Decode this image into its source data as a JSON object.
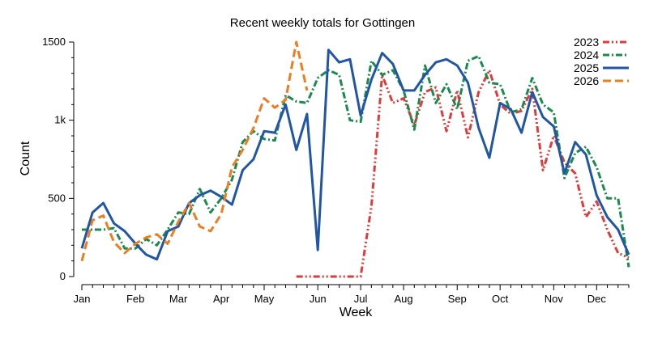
{
  "chart_data": {
    "type": "line",
    "title": "Recent weekly totals for Gottingen",
    "xlabel": "Week",
    "ylabel": "Count",
    "xlim": [
      1,
      52
    ],
    "ylim": [
      0,
      1500
    ],
    "y_ticks": [
      {
        "value": 0,
        "label": "0"
      },
      {
        "value": 500,
        "label": "500"
      },
      {
        "value": 1000,
        "label": "1k"
      },
      {
        "value": 1500,
        "label": "1500"
      }
    ],
    "x_ticks": [
      {
        "value": 1,
        "label": "Jan"
      },
      {
        "value": 6,
        "label": "Feb"
      },
      {
        "value": 10,
        "label": "Mar"
      },
      {
        "value": 14,
        "label": "Apr"
      },
      {
        "value": 18,
        "label": "May"
      },
      {
        "value": 23,
        "label": "Jun"
      },
      {
        "value": 27,
        "label": "Jul"
      },
      {
        "value": 31,
        "label": "Aug"
      },
      {
        "value": 36,
        "label": "Sep"
      },
      {
        "value": 40,
        "label": "Oct"
      },
      {
        "value": 45,
        "label": "Nov"
      },
      {
        "value": 49,
        "label": "Dec"
      }
    ],
    "legend_position": "top-right",
    "grid": false,
    "series": [
      {
        "name": "2023",
        "color": "#e03a3a",
        "dash": "dash-dot-dot",
        "x": [
          21,
          22,
          23,
          24,
          25,
          26,
          27,
          28,
          29,
          30,
          31,
          32,
          33,
          34,
          35,
          36,
          37,
          38,
          39,
          40,
          41,
          42,
          43,
          44,
          45,
          46,
          47,
          48,
          49,
          50,
          51,
          52
        ],
        "values": [
          0,
          0,
          0,
          0,
          0,
          0,
          0,
          450,
          1290,
          1110,
          1140,
          970,
          1180,
          1210,
          930,
          1190,
          890,
          1180,
          1320,
          1100,
          1040,
          1060,
          1200,
          680,
          900,
          730,
          660,
          380,
          480,
          300,
          150,
          120
        ]
      },
      {
        "name": "2024",
        "color": "#1a8a4e",
        "dash": "dash-dot",
        "x": [
          1,
          2,
          3,
          4,
          5,
          6,
          7,
          8,
          9,
          10,
          11,
          12,
          13,
          14,
          15,
          16,
          17,
          18,
          19,
          20,
          21,
          22,
          23,
          24,
          25,
          26,
          27,
          28,
          29,
          30,
          31,
          32,
          33,
          34,
          35,
          36,
          37,
          38,
          39,
          40,
          41,
          42,
          43,
          44,
          45,
          46,
          47,
          48,
          49,
          50,
          51,
          52
        ],
        "values": [
          300,
          300,
          300,
          310,
          180,
          180,
          240,
          200,
          300,
          410,
          400,
          560,
          410,
          500,
          620,
          860,
          930,
          880,
          870,
          1160,
          1120,
          1110,
          1270,
          1320,
          1290,
          1000,
          990,
          1380,
          1290,
          1320,
          1190,
          940,
          1350,
          1110,
          1230,
          1070,
          1380,
          1410,
          1240,
          1230,
          1050,
          1070,
          1270,
          1100,
          1050,
          630,
          790,
          830,
          700,
          500,
          500,
          60
        ]
      },
      {
        "name": "2025",
        "color": "#2156a5",
        "dash": "solid",
        "x": [
          1,
          2,
          3,
          4,
          5,
          6,
          7,
          8,
          9,
          10,
          11,
          12,
          13,
          14,
          15,
          16,
          17,
          18,
          19,
          20,
          21,
          22,
          23,
          24,
          25,
          26,
          27,
          28,
          29,
          30,
          31,
          32,
          33,
          34,
          35,
          36,
          37,
          38,
          39,
          40,
          41,
          42,
          43,
          44,
          45,
          46,
          47,
          48,
          49,
          50,
          51,
          52
        ],
        "values": [
          180,
          410,
          470,
          340,
          290,
          210,
          140,
          110,
          290,
          320,
          470,
          520,
          550,
          510,
          460,
          680,
          750,
          930,
          920,
          1100,
          810,
          1040,
          170,
          1450,
          1370,
          1390,
          1030,
          1260,
          1430,
          1360,
          1190,
          1190,
          1290,
          1370,
          1390,
          1350,
          1240,
          950,
          760,
          1110,
          1070,
          920,
          1180,
          1020,
          960,
          660,
          860,
          780,
          520,
          380,
          300,
          140
        ]
      },
      {
        "name": "2026",
        "color": "#ee7d22",
        "dash": "dash",
        "x": [
          1,
          2,
          3,
          4,
          5,
          6,
          7,
          8,
          9,
          10,
          11,
          12,
          13,
          14,
          15,
          16,
          17,
          18,
          19,
          20,
          21,
          22
        ],
        "values": [
          100,
          360,
          390,
          220,
          150,
          210,
          250,
          270,
          210,
          350,
          470,
          320,
          290,
          400,
          700,
          810,
          950,
          1140,
          1080,
          1130,
          1500,
          1190
        ]
      }
    ]
  }
}
